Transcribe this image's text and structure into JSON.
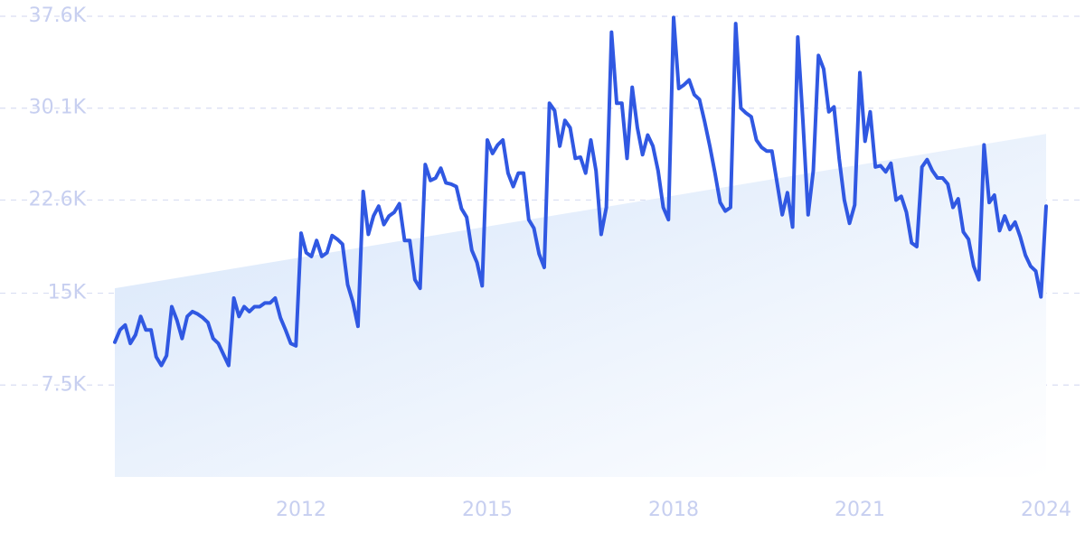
{
  "chart_data": {
    "type": "line",
    "color": "#3058e2",
    "trend_color": "#d6e5fa",
    "ylim": [
      0,
      37600
    ],
    "yticks": [
      {
        "value": 7500,
        "label": "7.5K"
      },
      {
        "value": 15000,
        "label": "15K"
      },
      {
        "value": 22600,
        "label": "22.6K"
      },
      {
        "value": 30100,
        "label": "30.1K"
      },
      {
        "value": 37600,
        "label": "37.6K"
      }
    ],
    "grid": true,
    "categories": [
      null,
      null,
      null,
      null,
      null,
      null,
      null,
      null,
      null,
      null,
      null,
      null,
      null,
      null,
      null,
      null,
      null,
      null,
      null,
      null,
      null,
      null,
      null,
      null,
      null,
      null,
      null,
      null,
      null,
      null,
      null,
      null,
      null,
      null,
      null,
      null,
      "2012",
      null,
      null,
      null,
      null,
      null,
      null,
      null,
      null,
      null,
      null,
      null,
      null,
      null,
      null,
      null,
      null,
      null,
      null,
      null,
      null,
      null,
      null,
      null,
      null,
      null,
      null,
      null,
      null,
      null,
      null,
      null,
      null,
      null,
      null,
      null,
      "2015",
      null,
      null,
      null,
      null,
      null,
      null,
      null,
      null,
      null,
      null,
      null,
      null,
      null,
      null,
      null,
      null,
      null,
      null,
      null,
      null,
      null,
      null,
      null,
      null,
      null,
      null,
      null,
      null,
      null,
      null,
      null,
      null,
      null,
      null,
      null,
      "2018",
      null,
      null,
      null,
      null,
      null,
      null,
      null,
      null,
      null,
      null,
      null,
      null,
      null,
      null,
      null,
      null,
      null,
      null,
      null,
      null,
      null,
      null,
      null,
      null,
      null,
      null,
      null,
      null,
      null,
      null,
      null,
      null,
      null,
      null,
      null,
      "2021",
      null,
      null,
      null,
      null,
      null,
      null,
      null,
      null,
      null,
      null,
      null,
      null,
      null,
      null,
      null,
      null,
      null,
      null,
      null,
      null,
      null,
      null,
      null,
      null,
      null,
      null,
      null,
      null,
      null,
      null,
      null,
      null,
      null,
      null,
      null,
      "2024"
    ],
    "values": [
      11000,
      12000,
      12400,
      10900,
      11600,
      13100,
      12000,
      12000,
      9800,
      9100,
      9900,
      13900,
      12800,
      11300,
      13100,
      13500,
      13300,
      13000,
      12600,
      11300,
      10900,
      10000,
      9100,
      14600,
      13100,
      13900,
      13500,
      13900,
      13900,
      14200,
      14200,
      14600,
      13000,
      12000,
      10900,
      10700,
      19900,
      18300,
      18000,
      19300,
      18000,
      18300,
      19700,
      19400,
      19000,
      15700,
      14300,
      12300,
      23300,
      19800,
      21300,
      22100,
      20600,
      21300,
      21600,
      22300,
      19300,
      19300,
      16100,
      15400,
      25500,
      24200,
      24400,
      25200,
      24000,
      23900,
      23700,
      21900,
      21200,
      18500,
      17500,
      15600,
      27500,
      26400,
      27100,
      27500,
      24800,
      23700,
      24800,
      24800,
      21000,
      20300,
      18200,
      17100,
      30500,
      29900,
      27000,
      29100,
      28500,
      26000,
      26100,
      24800,
      27500,
      25000,
      19800,
      22000,
      36300,
      30500,
      30500,
      26000,
      31800,
      28500,
      26300,
      27900,
      27000,
      25000,
      22000,
      21000,
      37500,
      31700,
      32000,
      32400,
      31200,
      30800,
      29000,
      27000,
      24800,
      22400,
      21700,
      22000,
      37000,
      30100,
      29700,
      29400,
      27500,
      26900,
      26600,
      26600,
      24000,
      21400,
      23200,
      20400,
      35900,
      29000,
      21400,
      25000,
      34400,
      33300,
      29800,
      30200,
      26000,
      22600,
      20700,
      22200,
      33000,
      27400,
      29800,
      25300,
      25400,
      24900,
      25600,
      22600,
      22900,
      21600,
      19100,
      18800,
      25300,
      25900,
      25000,
      24400,
      24400,
      23900,
      22000,
      22700,
      20000,
      19400,
      17200,
      16100,
      27100,
      22400,
      23000,
      20100,
      21300,
      20200,
      20800,
      19600,
      18100,
      17200,
      16800,
      14700,
      22100
    ],
    "trend": [
      15400,
      28000
    ]
  }
}
